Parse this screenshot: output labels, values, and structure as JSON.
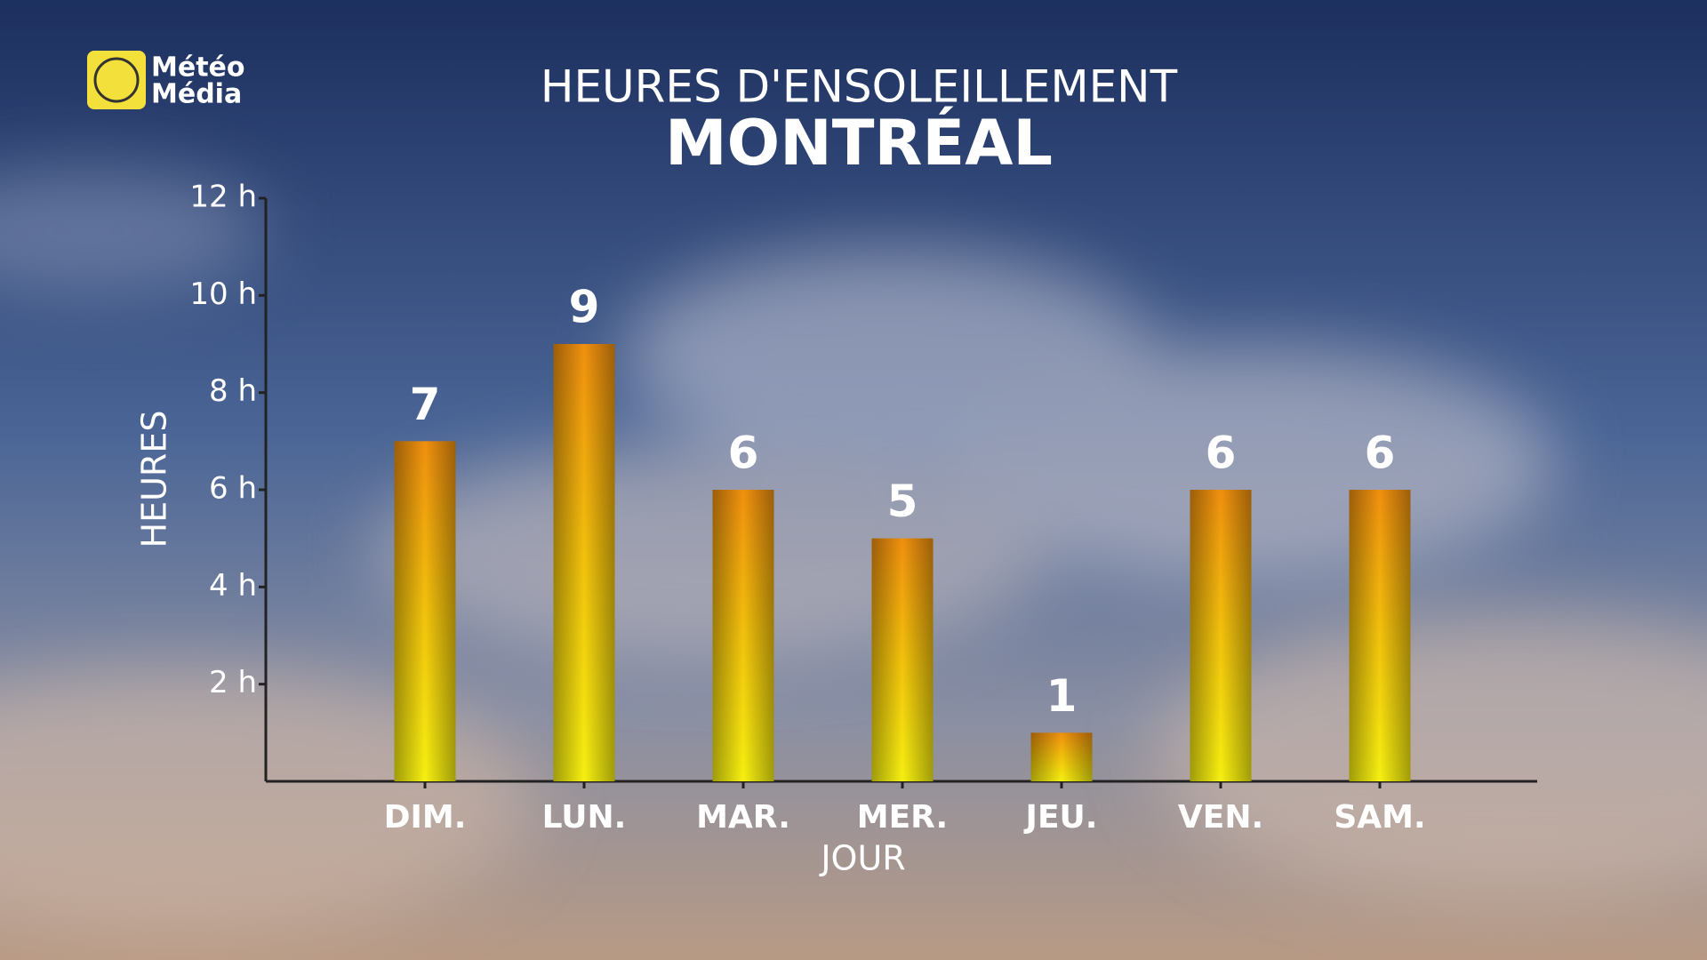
{
  "logo": {
    "lines": [
      "Météo",
      "Média"
    ]
  },
  "chart_data": {
    "type": "bar",
    "title": "HEURES D'ENSOLEILLEMENT",
    "subtitle": "MONTRÉAL",
    "x_label": "JOUR",
    "y_label": "HEURES",
    "categories": [
      "DIM.",
      "LUN.",
      "MAR.",
      "MER.",
      "JEU.",
      "VEN.",
      "SAM."
    ],
    "values": [
      7,
      9,
      6,
      5,
      1,
      6,
      6
    ],
    "color": "#f2c20c",
    "ylim": [
      0,
      12
    ],
    "yticks": [
      {
        "value": 2,
        "label": "2 h"
      },
      {
        "value": 4,
        "label": "4 h"
      },
      {
        "value": 6,
        "label": "6 h"
      },
      {
        "value": 8,
        "label": "8 h"
      },
      {
        "value": 10,
        "label": "10 h"
      },
      {
        "value": 12,
        "label": "12 h"
      }
    ],
    "grid": false
  }
}
